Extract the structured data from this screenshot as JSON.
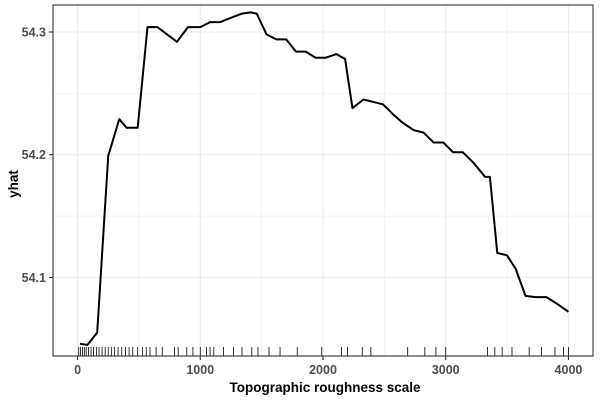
{
  "chart_data": {
    "type": "line",
    "title": "",
    "xlabel": "Topographic roughness scale",
    "ylabel": "yhat",
    "xlim": [
      -200,
      4200
    ],
    "ylim": [
      54.036,
      54.322
    ],
    "x_ticks": [
      0,
      1000,
      2000,
      3000,
      4000
    ],
    "x_tick_labels": [
      "0",
      "1000",
      "2000",
      "3000",
      "4000"
    ],
    "y_ticks": [
      54.1,
      54.2,
      54.3
    ],
    "y_tick_labels": [
      "54.1",
      "54.2",
      "54.3"
    ],
    "grid": true,
    "legend": "none",
    "series": [
      {
        "x": [
          20,
          80,
          160,
          250,
          340,
          400,
          490,
          570,
          650,
          730,
          810,
          900,
          1000,
          1080,
          1160,
          1260,
          1340,
          1410,
          1460,
          1540,
          1620,
          1700,
          1780,
          1860,
          1940,
          2020,
          2110,
          2180,
          2240,
          2330,
          2410,
          2490,
          2570,
          2650,
          2740,
          2820,
          2900,
          2980,
          3060,
          3140,
          3230,
          3320,
          3360,
          3420,
          3500,
          3570,
          3650,
          3730,
          3820,
          3900,
          4000
        ],
        "values": [
          54.046,
          54.045,
          54.055,
          54.199,
          54.229,
          54.222,
          54.222,
          54.304,
          54.304,
          54.298,
          54.292,
          54.304,
          54.304,
          54.308,
          54.308,
          54.312,
          54.315,
          54.316,
          54.315,
          54.298,
          54.294,
          54.294,
          54.284,
          54.284,
          54.279,
          54.279,
          54.282,
          54.278,
          54.238,
          54.245,
          54.243,
          54.241,
          54.233,
          54.226,
          54.22,
          54.218,
          54.21,
          54.21,
          54.202,
          54.202,
          54.193,
          54.182,
          54.182,
          54.12,
          54.118,
          54.107,
          54.085,
          54.084,
          54.084,
          54.079,
          54.072
        ]
      }
    ],
    "rug_x": [
      10,
      25,
      40,
      55,
      70,
      90,
      110,
      130,
      155,
      175,
      200,
      225,
      250,
      275,
      300,
      330,
      360,
      390,
      420,
      450,
      490,
      530,
      560,
      590,
      640,
      690,
      790,
      820,
      890,
      940,
      1000,
      1050,
      1080,
      1110,
      1190,
      1270,
      1340,
      1420,
      1470,
      1560,
      1650,
      1790,
      1990,
      2150,
      2200,
      2320,
      2390,
      2690,
      2830,
      2920,
      3000,
      3340,
      3400,
      3460,
      3540,
      3680,
      3780,
      3890,
      3960,
      4000
    ],
    "colors": {
      "line": "#000000",
      "grid": "#ebebeb",
      "panel_border": "#333333",
      "axis_text": "#4d4d4d"
    }
  }
}
